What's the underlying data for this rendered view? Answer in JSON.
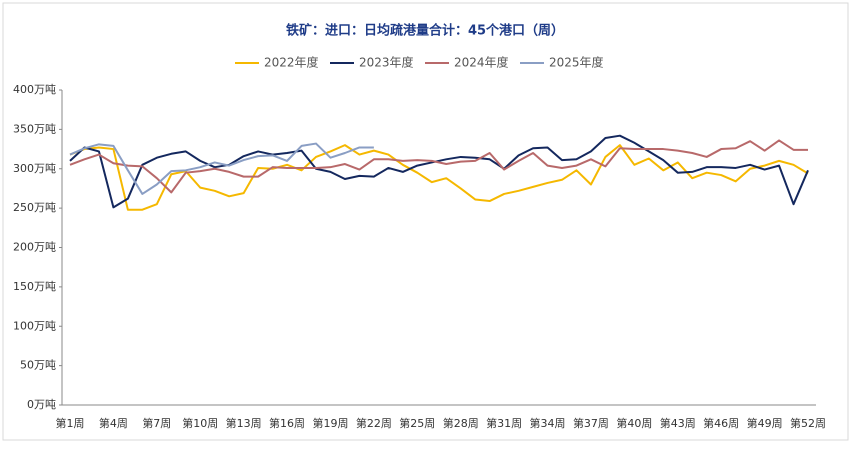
{
  "chart_data": {
    "type": "line",
    "title": "铁矿：进口：日均疏港量合计：45个港口（周）",
    "categories": [
      "第1周",
      null,
      null,
      "第4周",
      null,
      null,
      "第7周",
      null,
      null,
      "第10周",
      null,
      null,
      "第13周",
      null,
      null,
      "第16周",
      null,
      null,
      "第19周",
      null,
      null,
      "第22周",
      null,
      null,
      "第25周",
      null,
      null,
      "第28周",
      null,
      null,
      "第31周",
      null,
      null,
      "第34周",
      null,
      null,
      "第37周",
      null,
      null,
      "第40周",
      null,
      null,
      "第43周",
      null,
      null,
      "第46周",
      null,
      null,
      "第49周",
      null,
      null,
      "第52周"
    ],
    "series": [
      {
        "name": "2022年度",
        "color": "#f5b800",
        "values": [
          318,
          325,
          327,
          325,
          248,
          248,
          255,
          293,
          297,
          276,
          272,
          265,
          269,
          301,
          300,
          305,
          298,
          315,
          322,
          330,
          318,
          323,
          318,
          305,
          295,
          283,
          288,
          275,
          261,
          259,
          268,
          272,
          277,
          282,
          286,
          298,
          280,
          315,
          330,
          305,
          313,
          298,
          308,
          288,
          295,
          292,
          284,
          300,
          304,
          310,
          305,
          294
        ]
      },
      {
        "name": "2023年度",
        "color": "#14285e",
        "values": [
          310,
          327,
          322,
          251,
          262,
          305,
          314,
          319,
          322,
          310,
          302,
          305,
          316,
          322,
          318,
          320,
          323,
          300,
          296,
          287,
          291,
          290,
          301,
          296,
          304,
          308,
          312,
          315,
          314,
          312,
          300,
          317,
          326,
          327,
          311,
          312,
          322,
          339,
          342,
          333,
          322,
          311,
          295,
          296,
          302,
          302,
          301,
          305,
          299,
          304,
          255,
          298
        ]
      },
      {
        "name": "2024年度",
        "color": "#b8696a",
        "values": [
          305,
          312,
          318,
          307,
          304,
          303,
          288,
          270,
          295,
          297,
          300,
          296,
          290,
          290,
          302,
          301,
          301,
          301,
          302,
          306,
          299,
          312,
          312,
          310,
          311,
          310,
          306,
          309,
          310,
          320,
          299,
          310,
          320,
          304,
          301,
          304,
          312,
          303,
          326,
          325,
          325,
          325,
          323,
          320,
          315,
          325,
          326,
          335,
          323,
          336,
          324,
          324
        ]
      },
      {
        "name": "2025年度",
        "color": "#8a9ec4",
        "values": [
          318,
          326,
          331,
          329,
          298,
          268,
          280,
          297,
          298,
          302,
          308,
          304,
          311,
          316,
          317,
          310,
          329,
          332,
          314,
          320,
          327,
          327,
          null,
          null,
          null,
          null,
          null,
          null,
          null,
          null,
          null,
          null,
          null,
          null,
          null,
          null,
          null,
          null,
          null,
          null,
          null,
          null,
          null,
          null,
          null,
          null,
          null,
          null,
          null,
          null,
          null,
          null
        ]
      }
    ],
    "ylim": [
      0,
      400
    ],
    "yticks": [
      {
        "value": 0,
        "label": "0万吨"
      },
      {
        "value": 50,
        "label": "50万吨"
      },
      {
        "value": 100,
        "label": "100万吨"
      },
      {
        "value": 150,
        "label": "150万吨"
      },
      {
        "value": 200,
        "label": "200万吨"
      },
      {
        "value": 250,
        "label": "250万吨"
      },
      {
        "value": 300,
        "label": "300万吨"
      },
      {
        "value": 350,
        "label": "350万吨"
      },
      {
        "value": 400,
        "label": "400万吨"
      }
    ],
    "legend": "top"
  }
}
